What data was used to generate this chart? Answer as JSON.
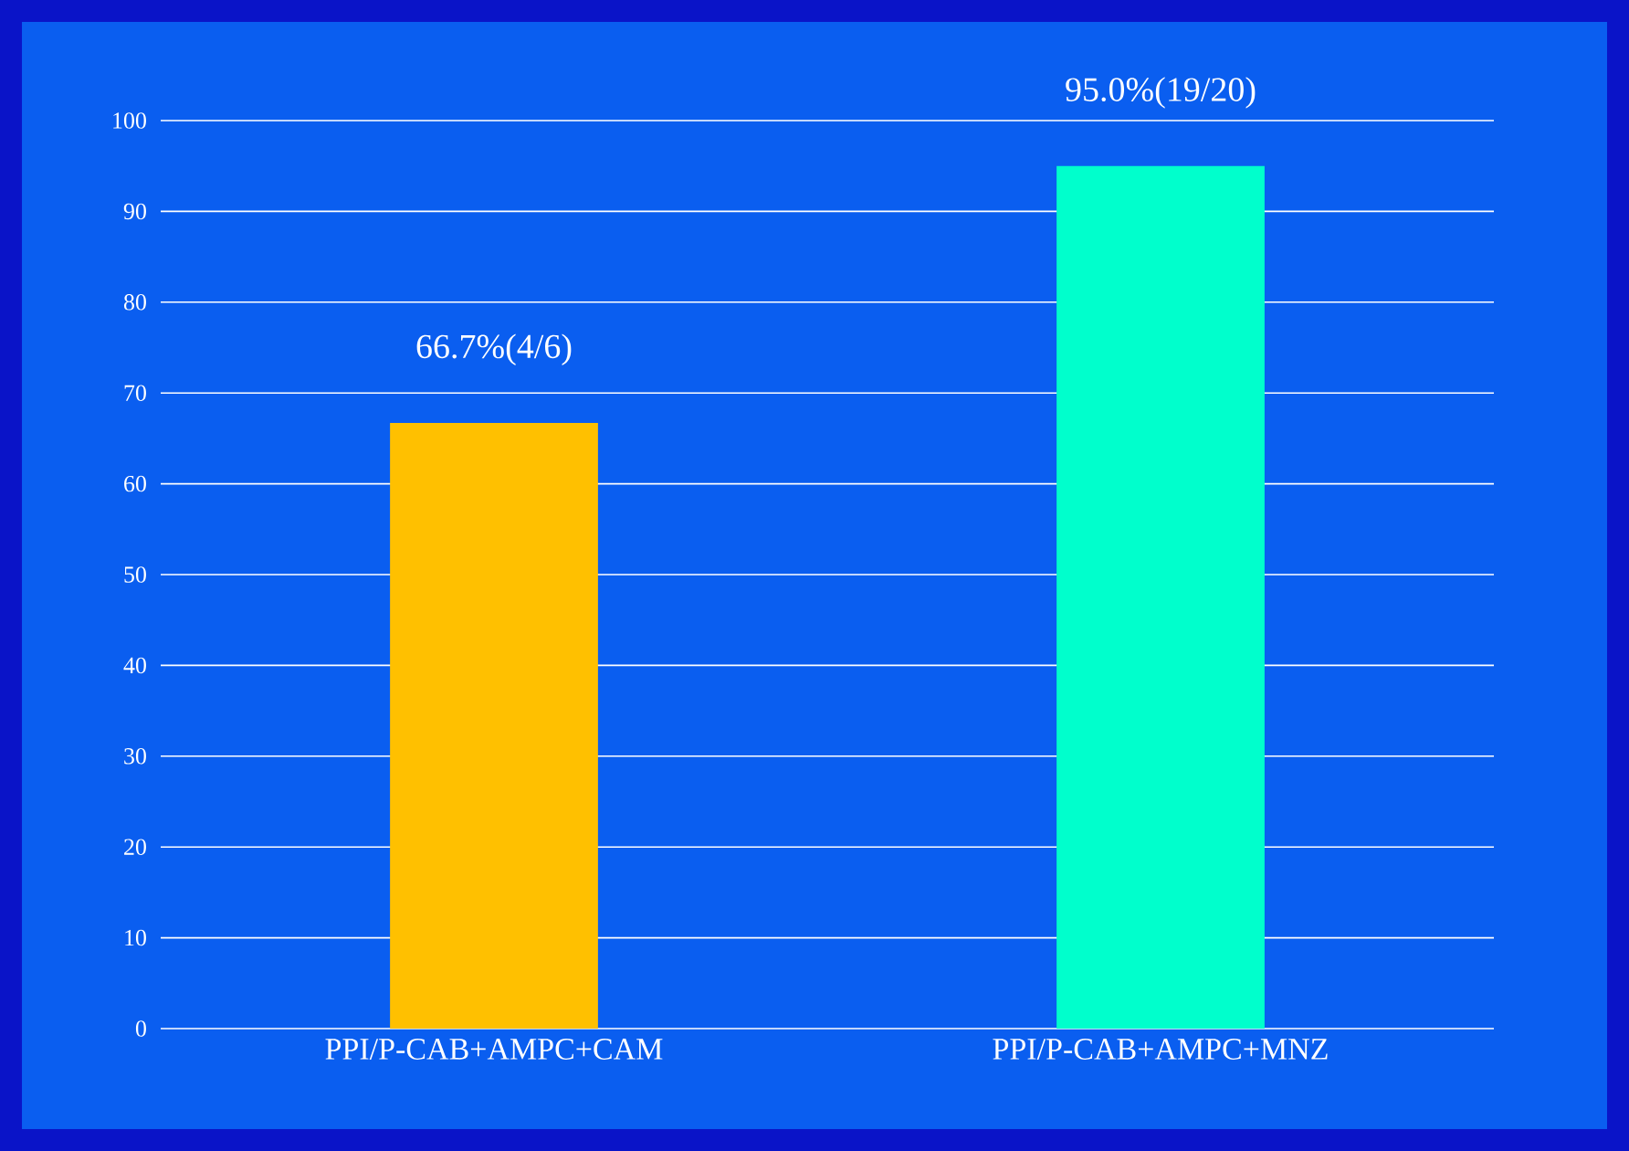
{
  "chart_data": {
    "type": "bar",
    "categories": [
      "PPI/P-CAB+AMPC+CAM",
      "PPI/P-CAB+AMPC+MNZ"
    ],
    "values": [
      66.7,
      95.0
    ],
    "colors": [
      "#ffc000",
      "#00ffcc"
    ],
    "value_labels": [
      "66.7%(4/6)",
      "95.0%(19/20)"
    ],
    "ylim": [
      0,
      100
    ],
    "yticks": [
      0,
      10,
      20,
      30,
      40,
      50,
      60,
      70,
      80,
      90,
      100
    ],
    "grid": "y"
  }
}
